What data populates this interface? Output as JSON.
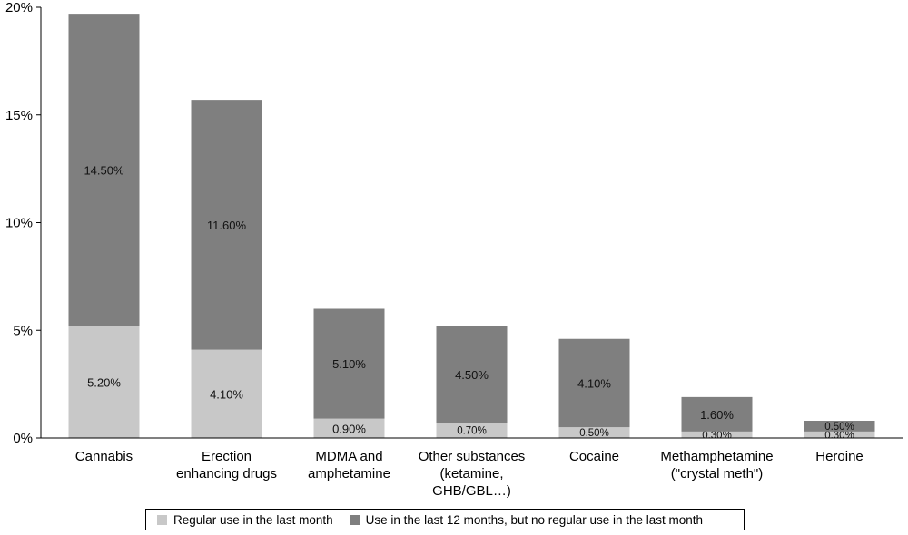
{
  "chart_data": {
    "type": "bar",
    "stacked": true,
    "categories": [
      "Cannabis",
      "Erection\nenhancing drugs",
      "MDMA and\namphetamine",
      "Other substances\n(ketamine,\nGHB/GBL…)",
      "Cocaine",
      "Methamphetamine\n(\"crystal meth\")",
      "Heroine"
    ],
    "series": [
      {
        "name": "Regular use in the last month",
        "color": "#c8c8c8",
        "values": [
          5.2,
          4.1,
          0.9,
          0.7,
          0.5,
          0.3,
          0.3
        ],
        "labels": [
          "5.20%",
          "4.10%",
          "0.90%",
          "0.70%",
          "0.50%",
          "0.30%",
          "0.30%"
        ]
      },
      {
        "name": "Use in the last 12 months, but no regular use in the last month",
        "color": "#7f7f7f",
        "values": [
          14.5,
          11.6,
          5.1,
          4.5,
          4.1,
          1.6,
          0.5
        ],
        "labels": [
          "14.50%",
          "11.60%",
          "5.10%",
          "4.50%",
          "4.10%",
          "1.60%",
          "0.50%"
        ]
      }
    ],
    "ylim": [
      0,
      20
    ],
    "yticks": [
      0,
      5,
      10,
      15,
      20
    ],
    "ytick_labels": [
      "0%",
      "5%",
      "10%",
      "15%",
      "20%"
    ],
    "legend_position": "bottom",
    "grid": false
  }
}
